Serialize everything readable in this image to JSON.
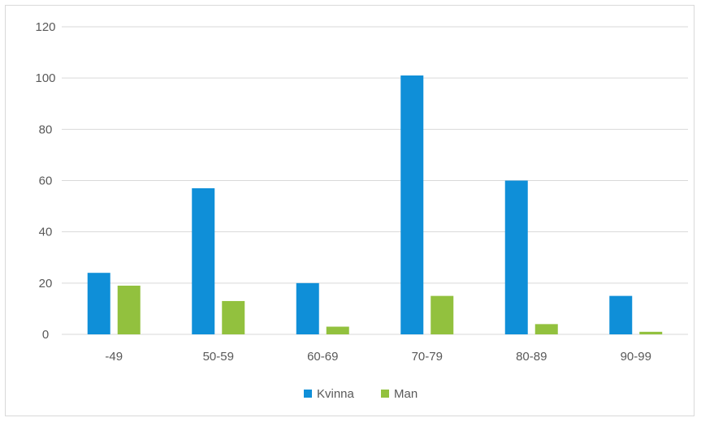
{
  "chart_data": {
    "type": "bar",
    "title": "",
    "xlabel": "",
    "ylabel": "",
    "categories": [
      "-49",
      "50-59",
      "60-69",
      "70-79",
      "80-89",
      "90-99"
    ],
    "series": [
      {
        "name": "Kvinna",
        "color": "#0f8fd8",
        "values": [
          24,
          57,
          20,
          101,
          60,
          15
        ]
      },
      {
        "name": "Man",
        "color": "#92c13e",
        "values": [
          19,
          13,
          3,
          15,
          4,
          1
        ]
      }
    ],
    "ylim": [
      0,
      120
    ],
    "yticks": [
      0,
      20,
      40,
      60,
      80,
      100,
      120
    ],
    "grid": true,
    "legend_position": "bottom",
    "colors": {
      "gridline": "#d9d9d9",
      "axis_text": "#595959"
    }
  }
}
